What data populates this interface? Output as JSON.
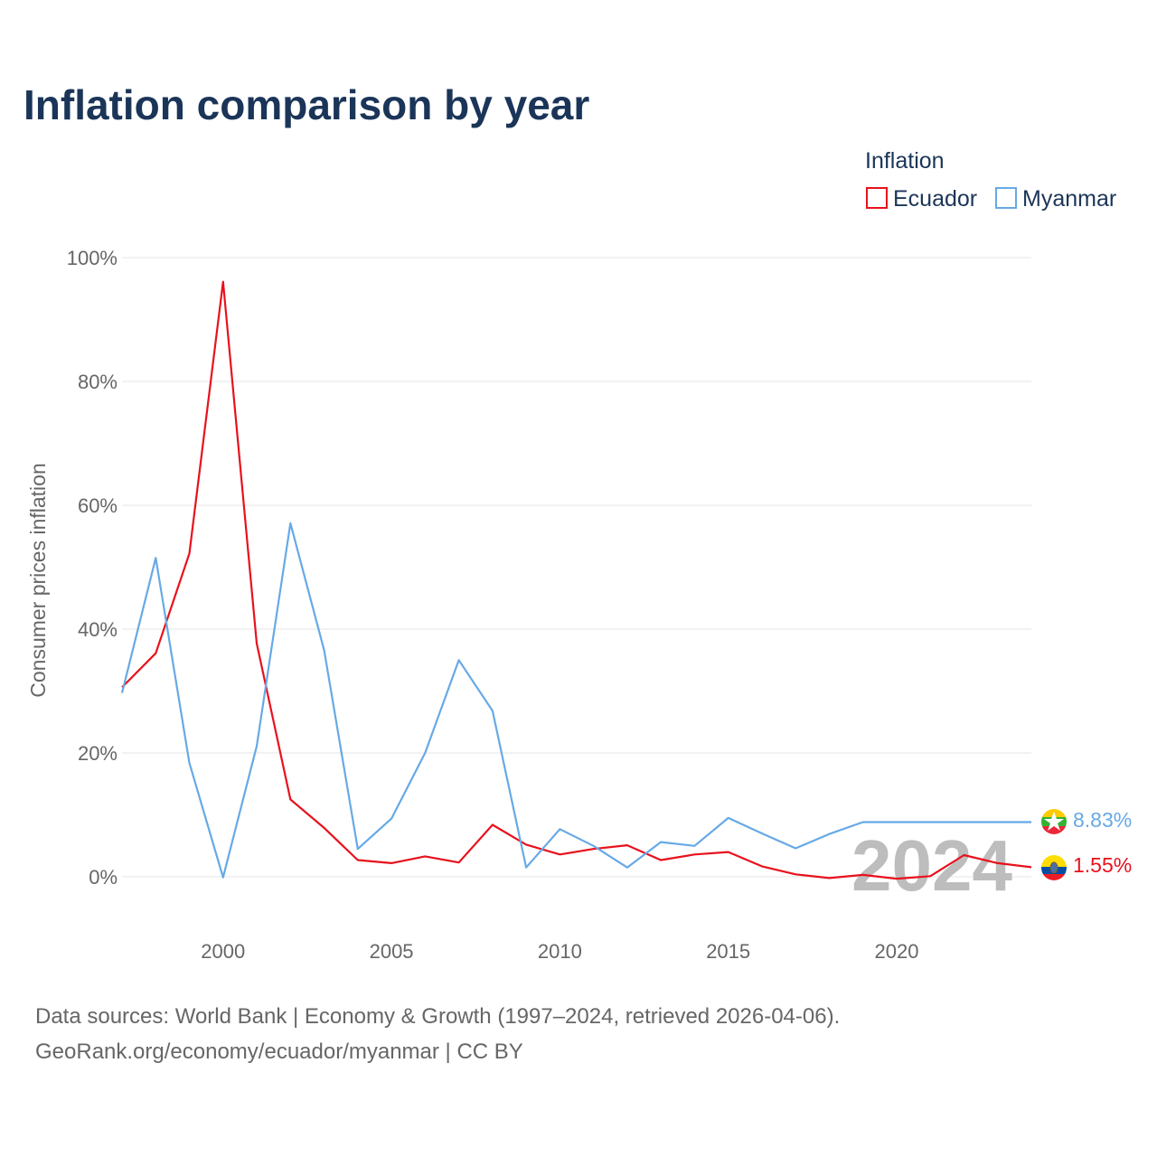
{
  "chart_data": {
    "type": "line",
    "title": "Inflation comparison by year",
    "legend_title": "Inflation",
    "ylabel": "Consumer prices inflation",
    "xlabel": "",
    "xlim": [
      1997,
      2024
    ],
    "ylim": [
      -10,
      100
    ],
    "yticks": [
      0,
      20,
      40,
      60,
      80,
      100
    ],
    "ytick_labels": [
      "0%",
      "20%",
      "40%",
      "60%",
      "80%",
      "100%"
    ],
    "xticks": [
      2000,
      2005,
      2010,
      2015,
      2020
    ],
    "xtick_labels": [
      "2000",
      "2005",
      "2010",
      "2015",
      "2020"
    ],
    "x": [
      1997,
      1998,
      1999,
      2000,
      2001,
      2002,
      2003,
      2004,
      2005,
      2006,
      2007,
      2008,
      2009,
      2010,
      2011,
      2012,
      2013,
      2014,
      2015,
      2016,
      2017,
      2018,
      2019,
      2020,
      2021,
      2022,
      2023,
      2024
    ],
    "series": [
      {
        "name": "Ecuador",
        "color": "#e8111c",
        "end_label": "1.55%",
        "values": [
          30.6,
          36.1,
          52.2,
          96.1,
          37.7,
          12.5,
          7.9,
          2.7,
          2.2,
          3.3,
          2.3,
          8.4,
          5.2,
          3.6,
          4.5,
          5.1,
          2.7,
          3.6,
          4.0,
          1.7,
          0.4,
          -0.2,
          0.3,
          -0.3,
          0.1,
          3.5,
          2.2,
          1.55
        ]
      },
      {
        "name": "Myanmar",
        "color": "#67a9e6",
        "end_label": "8.83%",
        "values": [
          29.7,
          51.5,
          18.4,
          -0.1,
          21.1,
          57.1,
          36.6,
          4.5,
          9.4,
          20.0,
          35.0,
          26.8,
          1.5,
          7.7,
          5.0,
          1.5,
          5.6,
          5.0,
          9.5,
          7.0,
          4.6,
          6.9,
          8.83,
          8.83,
          8.83,
          8.83,
          8.83,
          8.83
        ]
      }
    ],
    "current_year": "2024",
    "legend_position": "top-right",
    "grid": true
  },
  "footer": {
    "line1": "Data sources: World Bank | Economy & Growth (1997–2024, retrieved 2026-04-06).",
    "line2": "GeoRank.org/economy/ecuador/myanmar | CC BY"
  }
}
